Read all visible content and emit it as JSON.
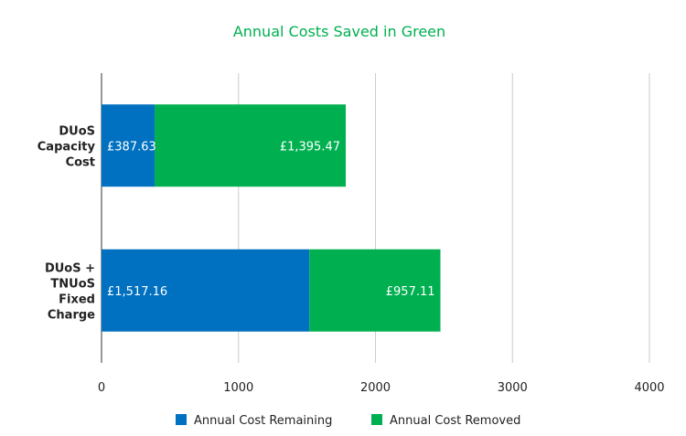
{
  "chart_data": {
    "type": "bar",
    "orientation": "horizontal",
    "stacked": true,
    "title": "Annual Costs Saved in Green",
    "title_color": "#00b050",
    "categories": [
      [
        "DUoS",
        "Capacity",
        "Cost"
      ],
      [
        "DUoS +",
        "TNUoS",
        "Fixed",
        "Charge"
      ]
    ],
    "series": [
      {
        "name": "Annual Cost Remaining",
        "color": "#0070c0",
        "values": [
          387.63,
          1517.16
        ],
        "labels": [
          "£387.63",
          "£1,517.16"
        ]
      },
      {
        "name": "Annual Cost Removed",
        "color": "#00b050",
        "values": [
          1395.47,
          957.11
        ],
        "labels": [
          "£1,395.47",
          "£957.11"
        ]
      }
    ],
    "xlim": [
      0,
      4000
    ],
    "xticks": [
      0,
      1000,
      2000,
      3000,
      4000
    ],
    "grid": true,
    "legend_position": "bottom"
  }
}
